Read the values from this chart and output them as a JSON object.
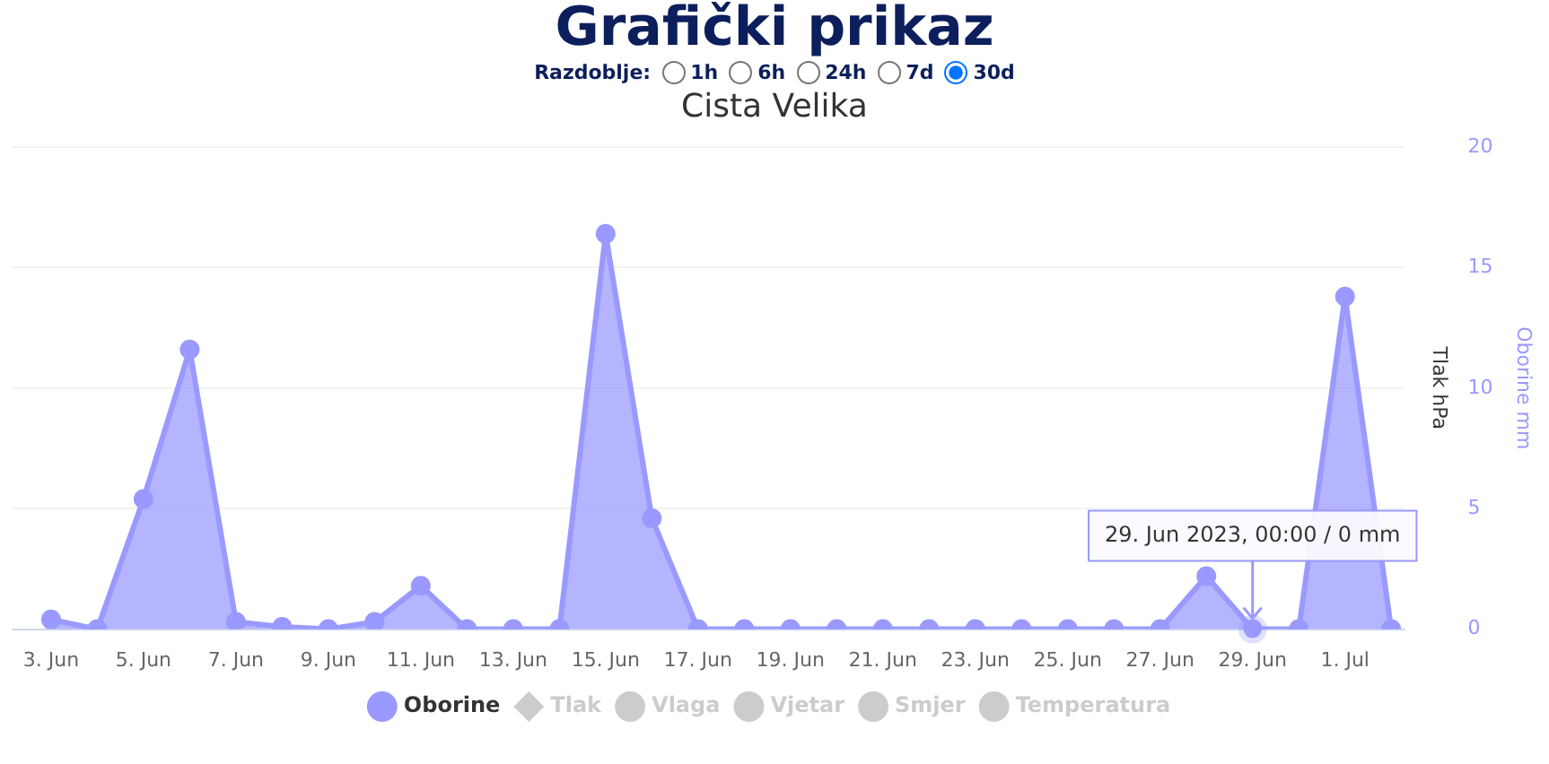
{
  "chart_data": {
    "type": "area",
    "title": "Grafički prikaz",
    "subtitle": "Cista Velika",
    "ylabel": "Oborine mm",
    "y2label": "Tlak hPa",
    "x": [
      "2023-06-03",
      "2023-06-04",
      "2023-06-05",
      "2023-06-06",
      "2023-06-07",
      "2023-06-08",
      "2023-06-09",
      "2023-06-10",
      "2023-06-11",
      "2023-06-12",
      "2023-06-13",
      "2023-06-14",
      "2023-06-15",
      "2023-06-16",
      "2023-06-17",
      "2023-06-18",
      "2023-06-19",
      "2023-06-20",
      "2023-06-21",
      "2023-06-22",
      "2023-06-23",
      "2023-06-24",
      "2023-06-25",
      "2023-06-26",
      "2023-06-27",
      "2023-06-28",
      "2023-06-29",
      "2023-06-30",
      "2023-07-01",
      "2023-07-02"
    ],
    "series": [
      {
        "name": "Oborine",
        "color": "#9999ff",
        "values": [
          0.4,
          0,
          5.4,
          11.6,
          0.3,
          0.1,
          0,
          0.3,
          1.8,
          0,
          0,
          0,
          16.4,
          4.6,
          0,
          0,
          0,
          0,
          0,
          0,
          0,
          0,
          0,
          0,
          0,
          2.2,
          0,
          0,
          13.8,
          0
        ]
      },
      {
        "name": "Tlak",
        "color": "#cccccc",
        "marker": "diamond",
        "values": [
          null,
          null,
          null,
          null,
          null,
          null,
          null,
          null,
          null,
          null,
          null,
          null,
          null,
          null,
          null,
          null,
          null,
          null,
          null,
          null,
          null,
          null,
          null,
          null,
          null,
          null,
          null,
          null,
          null,
          null
        ]
      },
      {
        "name": "Vlaga",
        "color": "#cccccc",
        "values": [
          null,
          null,
          null,
          null,
          null,
          null,
          null,
          null,
          null,
          null,
          null,
          null,
          null,
          null,
          null,
          null,
          null,
          null,
          null,
          null,
          null,
          null,
          null,
          null,
          null,
          null,
          null,
          null,
          null,
          null
        ]
      },
      {
        "name": "Vjetar",
        "color": "#cccccc",
        "values": [
          null,
          null,
          null,
          null,
          null,
          null,
          null,
          null,
          null,
          null,
          null,
          null,
          null,
          null,
          null,
          null,
          null,
          null,
          null,
          null,
          null,
          null,
          null,
          null,
          null,
          null,
          null,
          null,
          null,
          null
        ]
      },
      {
        "name": "Smjer",
        "color": "#cccccc",
        "type": "scatter",
        "values": [
          null,
          null,
          null,
          null,
          null,
          null,
          null,
          null,
          null,
          null,
          null,
          null,
          null,
          null,
          null,
          null,
          null,
          null,
          null,
          null,
          null,
          null,
          null,
          null,
          null,
          null,
          null,
          null,
          null,
          null
        ]
      },
      {
        "name": "Temperatura",
        "color": "#cccccc",
        "values": [
          null,
          null,
          null,
          null,
          null,
          null,
          null,
          null,
          null,
          null,
          null,
          null,
          null,
          null,
          null,
          null,
          null,
          null,
          null,
          null,
          null,
          null,
          null,
          null,
          null,
          null,
          null,
          null,
          null,
          null
        ]
      }
    ],
    "xlim": [
      "2023-06-02T04:00",
      "2023-07-02T07:00"
    ],
    "xticks": [
      {
        "value": "2023-06-03",
        "label": "3. Jun"
      },
      {
        "value": "2023-06-05",
        "label": "5. Jun"
      },
      {
        "value": "2023-06-07",
        "label": "7. Jun"
      },
      {
        "value": "2023-06-09",
        "label": "9. Jun"
      },
      {
        "value": "2023-06-11",
        "label": "11. Jun"
      },
      {
        "value": "2023-06-13",
        "label": "13. Jun"
      },
      {
        "value": "2023-06-15",
        "label": "15. Jun"
      },
      {
        "value": "2023-06-17",
        "label": "17. Jun"
      },
      {
        "value": "2023-06-19",
        "label": "19. Jun"
      },
      {
        "value": "2023-06-21",
        "label": "21. Jun"
      },
      {
        "value": "2023-06-23",
        "label": "23. Jun"
      },
      {
        "value": "2023-06-25",
        "label": "25. Jun"
      },
      {
        "value": "2023-06-27",
        "label": "27. Jun"
      },
      {
        "value": "2023-06-29",
        "label": "29. Jun"
      },
      {
        "value": "2023-07-01",
        "label": "1. Jul"
      }
    ],
    "ylim": [
      0,
      20
    ],
    "yticks": [
      0,
      5,
      10,
      15,
      20
    ],
    "grid": "y",
    "legend": "bottom",
    "marker": "circle",
    "annotations": [
      "Razdoblje:",
      "1h",
      "6h",
      "24h",
      "7d",
      "30d",
      {
        "text": "29. Jun 2023, 00:00 / 0 mm",
        "x": "2023-06-29",
        "y": 0
      }
    ]
  }
}
